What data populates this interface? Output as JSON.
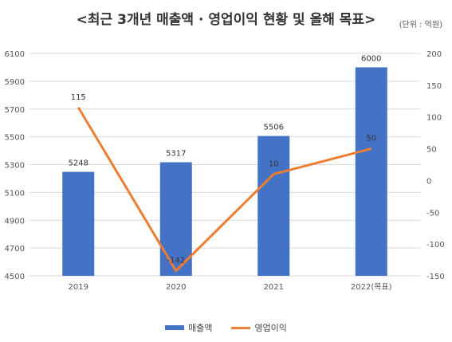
{
  "chart_data": {
    "type": "bar+line",
    "title": "<최근 3개년 매출액 · 영업이익 현황 및 올해 목표>",
    "unit_label": "(단위 : 억원)",
    "categories": [
      "2019",
      "2020",
      "2021",
      "2022(목표)"
    ],
    "series": [
      {
        "name": "매출액",
        "type": "bar",
        "axis": "left",
        "values": [
          5248,
          5317,
          5506,
          6000
        ],
        "color": "#4472c4"
      },
      {
        "name": "영업이익",
        "type": "line",
        "axis": "right",
        "values": [
          115,
          -142,
          10,
          50
        ],
        "color": "#ed7d31"
      }
    ],
    "y_left": {
      "min": 4500,
      "max": 6100,
      "ticks": [
        4500,
        4700,
        4900,
        5100,
        5300,
        5500,
        5700,
        5900,
        6100
      ]
    },
    "y_right": {
      "min": -150,
      "max": 200,
      "ticks": [
        -150,
        -100,
        -50,
        0,
        50,
        100,
        150,
        200
      ]
    },
    "grid": true,
    "legend_position": "bottom"
  }
}
